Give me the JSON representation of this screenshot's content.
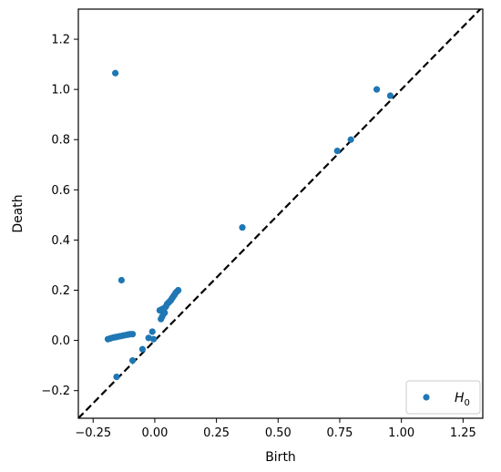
{
  "chart_data": {
    "type": "scatter",
    "title": "",
    "xlabel": "Birth",
    "ylabel": "Death",
    "xlim": [
      -0.31,
      1.33
    ],
    "ylim": [
      -0.31,
      1.32
    ],
    "x_ticks": [
      -0.25,
      0.0,
      0.25,
      0.5,
      0.75,
      1.0,
      1.25
    ],
    "x_tick_labels": [
      "−0.25",
      "0.00",
      "0.25",
      "0.50",
      "0.75",
      "1.00",
      "1.25"
    ],
    "y_ticks": [
      -0.2,
      0.0,
      0.2,
      0.4,
      0.6,
      0.8,
      1.0,
      1.2
    ],
    "y_tick_labels": [
      "−0.2",
      "0.0",
      "0.2",
      "0.4",
      "0.6",
      "0.8",
      "1.0",
      "1.2"
    ],
    "grid": false,
    "legend_position": "bottom-right",
    "diagonal": {
      "style": "dashed",
      "color": "#000000"
    },
    "series": [
      {
        "name": "H0",
        "color": "#1f77b4",
        "points": [
          [
            -0.16,
            1.065
          ],
          [
            -0.135,
            0.24
          ],
          [
            -0.155,
            -0.145
          ],
          [
            -0.09,
            -0.08
          ],
          [
            -0.05,
            -0.035
          ],
          [
            -0.025,
            0.01
          ],
          [
            -0.01,
            0.035
          ],
          [
            -0.005,
            0.005
          ],
          [
            -0.19,
            0.005
          ],
          [
            -0.18,
            0.008
          ],
          [
            -0.17,
            0.011
          ],
          [
            -0.16,
            0.013
          ],
          [
            -0.15,
            0.015
          ],
          [
            -0.14,
            0.017
          ],
          [
            -0.13,
            0.019
          ],
          [
            -0.12,
            0.021
          ],
          [
            -0.11,
            0.023
          ],
          [
            -0.1,
            0.025
          ],
          [
            -0.09,
            0.025
          ],
          [
            0.025,
            0.085
          ],
          [
            0.03,
            0.095
          ],
          [
            0.035,
            0.105
          ],
          [
            0.04,
            0.11
          ],
          [
            0.02,
            0.12
          ],
          [
            0.03,
            0.125
          ],
          [
            0.04,
            0.13
          ],
          [
            0.045,
            0.135
          ],
          [
            0.05,
            0.145
          ],
          [
            0.055,
            0.15
          ],
          [
            0.06,
            0.155
          ],
          [
            0.065,
            0.16
          ],
          [
            0.07,
            0.168
          ],
          [
            0.075,
            0.175
          ],
          [
            0.08,
            0.182
          ],
          [
            0.085,
            0.19
          ],
          [
            0.09,
            0.195
          ],
          [
            0.095,
            0.2
          ],
          [
            0.355,
            0.45
          ],
          [
            0.74,
            0.755
          ],
          [
            0.795,
            0.8
          ],
          [
            0.9,
            1.0
          ],
          [
            0.955,
            0.975
          ]
        ]
      }
    ]
  },
  "legend": {
    "label_main": "H",
    "label_sub": "0"
  }
}
